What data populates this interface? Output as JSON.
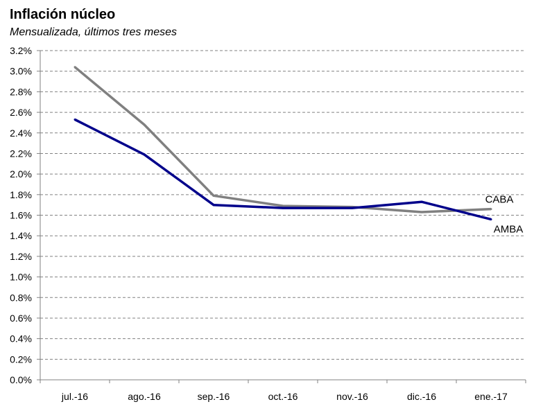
{
  "header": {
    "title": "Inflación núcleo",
    "subtitle": "Mensualizada, últimos tres meses"
  },
  "chart_data": {
    "type": "line",
    "title": "Inflación núcleo",
    "subtitle": "Mensualizada, últimos tres meses",
    "xlabel": "",
    "ylabel": "",
    "categories": [
      "jul.-16",
      "ago.-16",
      "sep.-16",
      "oct.-16",
      "nov.-16",
      "dic.-16",
      "ene.-17"
    ],
    "ylim": [
      0,
      3.2
    ],
    "ytick_step": 0.2,
    "y_tick_labels": [
      "0.0%",
      "0.2%",
      "0.4%",
      "0.6%",
      "0.8%",
      "1.0%",
      "1.2%",
      "1.4%",
      "1.6%",
      "1.8%",
      "2.0%",
      "2.2%",
      "2.4%",
      "2.6%",
      "2.8%",
      "3.0%",
      "3.2%"
    ],
    "grid": "horizontal dashed",
    "legend": "labels at line ends",
    "series": [
      {
        "name": "CABA",
        "color": "#808080",
        "values": [
          3.04,
          2.48,
          1.79,
          1.69,
          1.68,
          1.63,
          1.66
        ]
      },
      {
        "name": "AMBA",
        "color": "#00008B",
        "values": [
          2.53,
          2.19,
          1.7,
          1.67,
          1.67,
          1.73,
          1.56
        ]
      }
    ]
  }
}
